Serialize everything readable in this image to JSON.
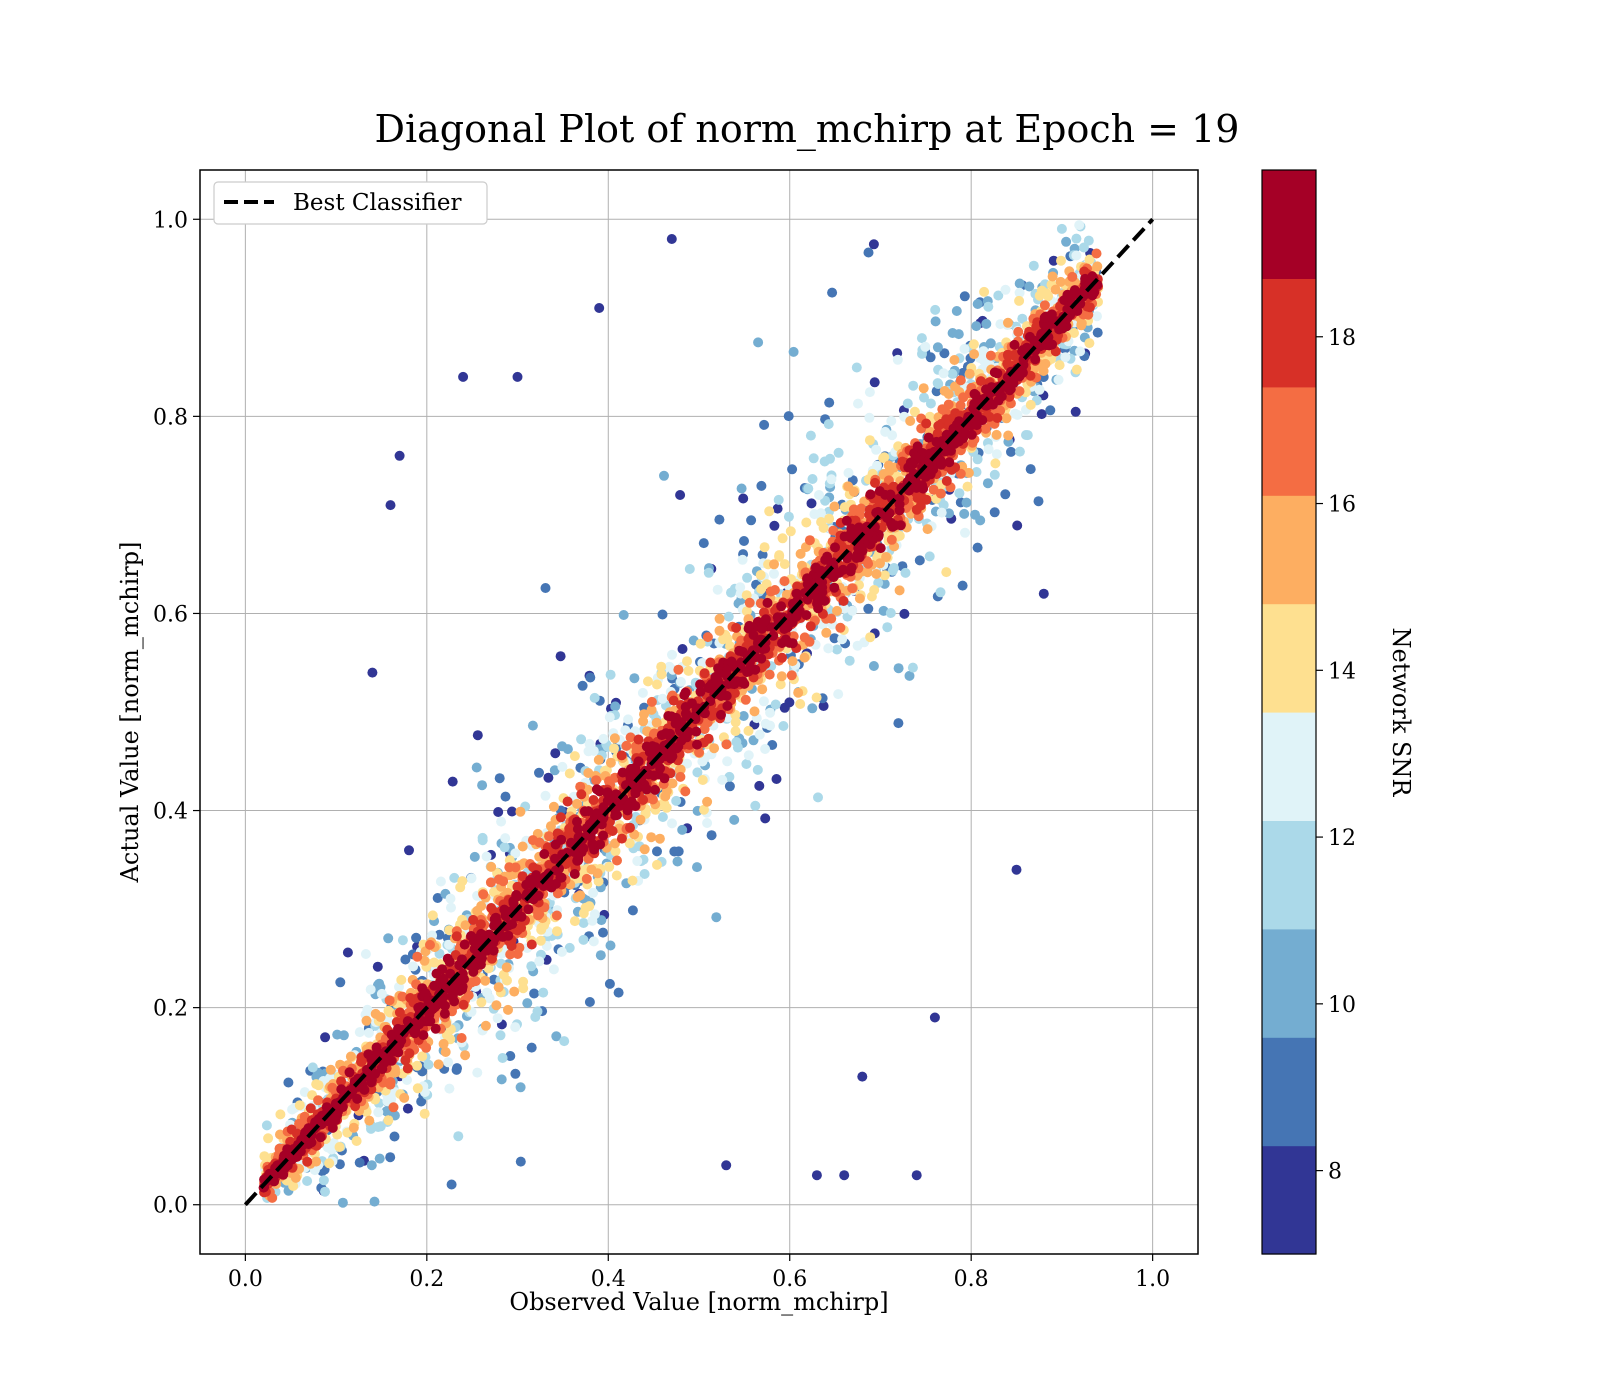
{
  "chart_data": {
    "type": "scatter",
    "title": "Diagonal Plot of norm_mchirp at Epoch = 19",
    "xlabel": "Observed Value [norm_mchirp]",
    "ylabel": "Actual Value [norm_mchirp]",
    "xlim": [
      -0.05,
      1.05
    ],
    "ylim": [
      -0.05,
      1.05
    ],
    "xticks": [
      0.0,
      0.2,
      0.4,
      0.6,
      0.8,
      1.0
    ],
    "yticks": [
      0.0,
      0.2,
      0.4,
      0.6,
      0.8,
      1.0
    ],
    "xtick_labels": [
      "0.0",
      "0.2",
      "0.4",
      "0.6",
      "0.8",
      "1.0"
    ],
    "ytick_labels": [
      "0.0",
      "0.2",
      "0.4",
      "0.6",
      "0.8",
      "1.0"
    ],
    "grid": true,
    "legend": {
      "placement": "upper-left",
      "entries": [
        "Best Classifier"
      ]
    },
    "reference_line": {
      "name": "Best Classifier",
      "style": "dashed",
      "color": "#000000",
      "x": [
        0.0,
        1.0
      ],
      "y": [
        0.0,
        1.0
      ]
    },
    "colorbar": {
      "label": "Network SNR",
      "range": [
        7,
        20
      ],
      "ticks": [
        8,
        10,
        12,
        14,
        16,
        18
      ],
      "tick_labels": [
        "8",
        "10",
        "12",
        "14",
        "16",
        "18"
      ],
      "colors": [
        "#313695",
        "#4575b4",
        "#74add1",
        "#abd9e9",
        "#e0f3f8",
        "#fee090",
        "#fdae61",
        "#f46d43",
        "#d73027",
        "#a50026"
      ]
    },
    "point_cloud": {
      "description_values": "points cluster along the diagonal; high SNR points lie near y = x, low SNR points scatter widely",
      "x_range": [
        0.02,
        0.94
      ],
      "y_range": [
        0.0,
        1.0
      ],
      "highlighted_outliers": [
        {
          "x": 0.24,
          "y": 0.84
        },
        {
          "x": 0.3,
          "y": 0.84
        },
        {
          "x": 0.17,
          "y": 0.76
        },
        {
          "x": 0.16,
          "y": 0.71
        },
        {
          "x": 0.14,
          "y": 0.54
        },
        {
          "x": 0.47,
          "y": 0.98
        },
        {
          "x": 0.63,
          "y": 0.03
        },
        {
          "x": 0.66,
          "y": 0.03
        },
        {
          "x": 0.74,
          "y": 0.03
        },
        {
          "x": 0.68,
          "y": 0.13
        },
        {
          "x": 0.76,
          "y": 0.19
        },
        {
          "x": 0.85,
          "y": 0.34
        },
        {
          "x": 0.88,
          "y": 0.62
        },
        {
          "x": 0.39,
          "y": 0.91
        },
        {
          "x": 0.53,
          "y": 0.04
        }
      ]
    }
  }
}
